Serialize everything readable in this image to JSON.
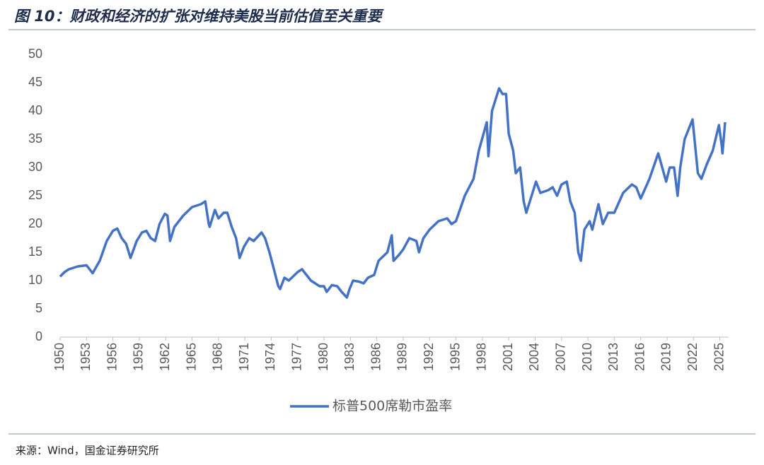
{
  "chart_data": {
    "type": "line",
    "title": "图 10：财政和经济的扩张对维持美股当前估值至关重要",
    "source": "来源：Wind，国金证券研究所",
    "xlim": [
      1950,
      2026
    ],
    "ylim": [
      0,
      50
    ],
    "xticks": [
      1950,
      1953,
      1956,
      1959,
      1962,
      1965,
      1968,
      1971,
      1974,
      1977,
      1980,
      1983,
      1986,
      1989,
      1992,
      1995,
      1998,
      2001,
      2004,
      2007,
      2010,
      2013,
      2016,
      2019,
      2022,
      2025
    ],
    "yticks": [
      0,
      5,
      10,
      15,
      20,
      25,
      30,
      35,
      40,
      45,
      50
    ],
    "legend": "bottom",
    "series": [
      {
        "name": "标普500席勒市盈率",
        "color": "#4472c4",
        "x": [
          1950,
          1950.5,
          1951,
          1952,
          1953,
          1953.7,
          1954.5,
          1955.3,
          1956,
          1956.5,
          1957,
          1957.5,
          1958,
          1958.7,
          1959.3,
          1959.8,
          1960.3,
          1960.8,
          1961.3,
          1961.9,
          1962.2,
          1962.5,
          1963,
          1964,
          1965,
          1966,
          1966.5,
          1966.9,
          1967,
          1967.6,
          1968,
          1968.6,
          1969,
          1969.5,
          1970,
          1970.4,
          1970.9,
          1971.5,
          1972,
          1972.9,
          1973.3,
          1973.8,
          1974.3,
          1974.8,
          1975,
          1975.5,
          1976,
          1977,
          1977.5,
          1978,
          1978.5,
          1979,
          1979.5,
          1980,
          1980.3,
          1980.9,
          1981.5,
          1982,
          1982.6,
          1982.9,
          1983.3,
          1984,
          1984.5,
          1985,
          1985.7,
          1986.2,
          1987.2,
          1987.7,
          1987.9,
          1988.5,
          1989,
          1989.7,
          1990.5,
          1990.8,
          1991.3,
          1992,
          1993,
          1994,
          1994.5,
          1995,
          1996,
          1997,
          1997.6,
          1998.5,
          1998.7,
          1999.1,
          1999.5,
          1999.9,
          2000.3,
          2000.7,
          2001,
          2001.5,
          2001.8,
          2002.3,
          2002.7,
          2003,
          2003.6,
          2004.1,
          2004.6,
          2005.5,
          2006,
          2006.5,
          2007,
          2007.6,
          2008,
          2008.5,
          2008.9,
          2009.2,
          2009.6,
          2010.2,
          2010.5,
          2011.2,
          2011.7,
          2012.3,
          2013,
          2014,
          2015,
          2015.5,
          2016,
          2017,
          2018,
          2018.9,
          2019.3,
          2019.8,
          2020.2,
          2020.5,
          2021,
          2021.9,
          2022.5,
          2022.9,
          2023.5,
          2024.2,
          2024.9,
          2025.2,
          2025.3,
          2025.6
        ],
        "values": [
          10.7,
          11.5,
          12,
          12.5,
          12.7,
          11.3,
          13.5,
          17,
          18.8,
          19.2,
          17.5,
          16.5,
          14,
          17,
          18.5,
          18.8,
          17.5,
          17,
          20,
          21.8,
          21.5,
          17,
          19.5,
          21.5,
          23,
          23.5,
          24,
          20,
          19.5,
          22.5,
          21,
          22,
          22,
          19.5,
          17.5,
          14,
          16,
          17.5,
          17,
          18.5,
          17.5,
          15,
          12,
          9,
          8.5,
          10.5,
          10,
          11.5,
          12,
          11,
          10,
          9.5,
          9,
          9,
          8,
          9.2,
          9,
          8,
          7,
          8.5,
          10,
          9.8,
          9.5,
          10.5,
          11,
          13.5,
          15,
          18,
          13.5,
          14.5,
          15.5,
          17.5,
          17,
          15,
          17.5,
          19,
          20.5,
          21,
          20,
          20.5,
          25,
          28,
          33,
          38,
          32,
          40,
          42,
          44,
          43,
          43,
          36,
          33,
          29,
          30,
          24,
          22,
          25,
          27.5,
          25.5,
          26,
          26.5,
          25,
          27,
          27.5,
          24,
          22,
          15,
          13.5,
          19,
          20.5,
          19,
          23.5,
          20,
          22,
          22,
          25.5,
          27,
          26.5,
          24.5,
          28,
          32.5,
          27.5,
          30,
          30,
          25,
          30,
          35,
          38.5,
          29,
          28,
          30.5,
          33,
          37.5,
          34,
          32.5,
          38
        ]
      }
    ]
  }
}
